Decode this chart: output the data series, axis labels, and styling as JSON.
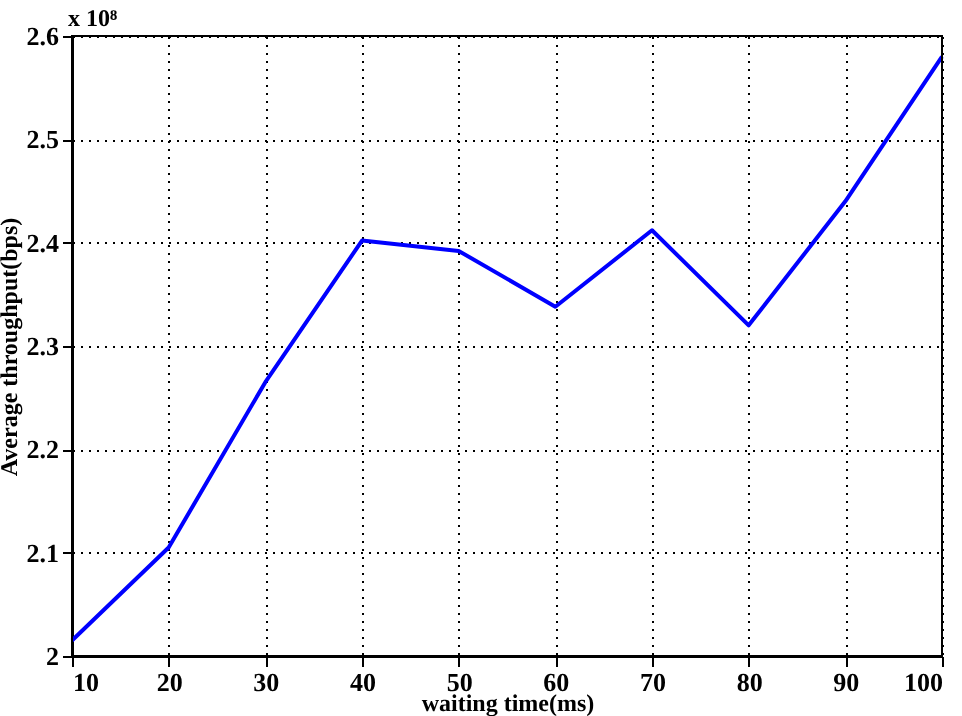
{
  "chart_data": {
    "type": "line",
    "xlabel": "waiting time(ms)",
    "ylabel": "Average throughput(bps)",
    "annotations": [
      "x 10⁸"
    ],
    "x": [
      10,
      20,
      30,
      40,
      50,
      60,
      70,
      80,
      90,
      100
    ],
    "series": [
      {
        "color": "#0000ff",
        "values": [
          2.015,
          2.105,
          2.265,
          2.402,
          2.392,
          2.338,
          2.412,
          2.32,
          2.44,
          2.58
        ]
      }
    ],
    "xlim": [
      10,
      100
    ],
    "xticks": [
      10,
      20,
      30,
      40,
      50,
      60,
      70,
      80,
      90,
      100
    ],
    "ylim": [
      2,
      2.6
    ],
    "yticks": [
      2,
      2.1,
      2.2,
      2.3,
      2.4,
      2.5,
      2.6
    ],
    "grid": true,
    "marker": "none",
    "line_style": "solid"
  }
}
